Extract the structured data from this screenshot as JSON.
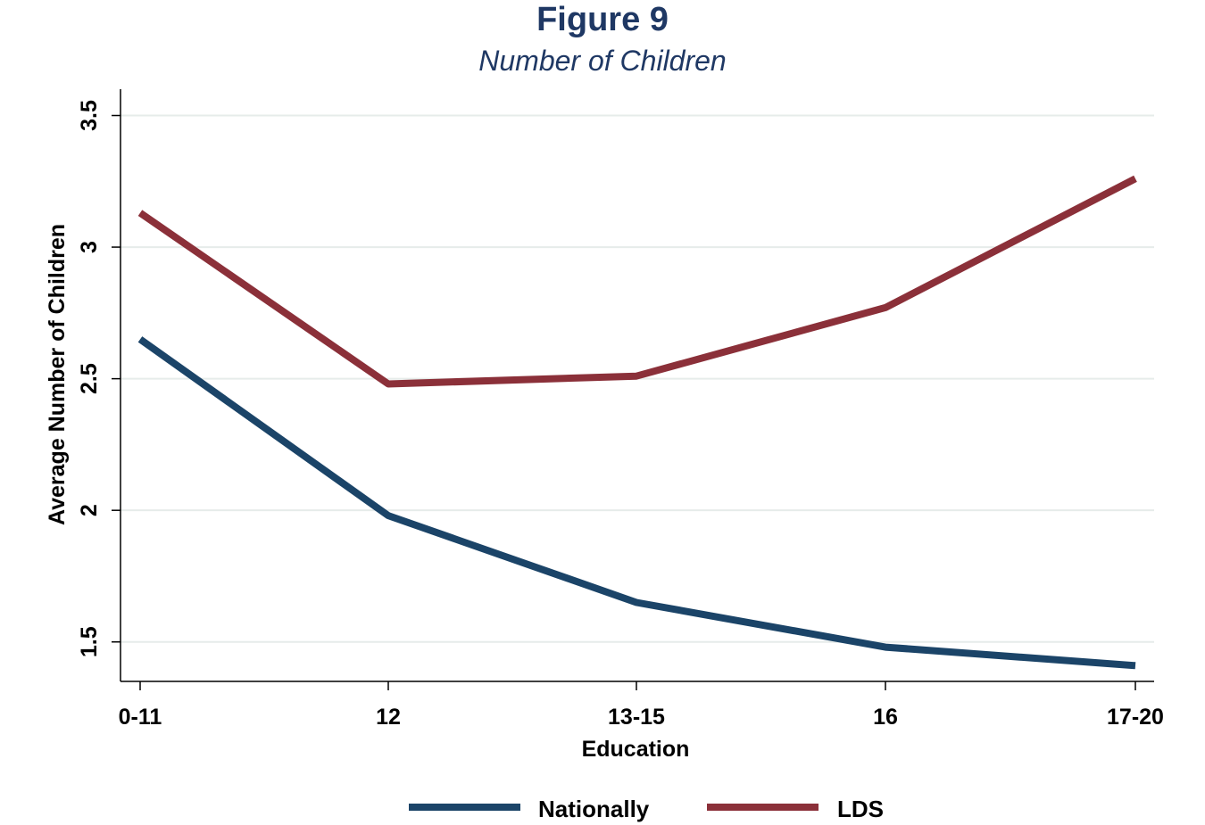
{
  "chart_data": {
    "type": "line",
    "title": "Figure 9",
    "subtitle": "Number of Children",
    "xlabel": "Education",
    "ylabel": "Average Number of Children",
    "categories": [
      "0-11",
      "12",
      "13-15",
      "16",
      "17-20"
    ],
    "yticks": [
      "1.5",
      "2",
      "2.5",
      "3",
      "3.5"
    ],
    "ylim": [
      1.35,
      3.6
    ],
    "grid": true,
    "legend_position": "bottom",
    "series": [
      {
        "name": "Nationally",
        "color": "#1b4468",
        "values": [
          2.65,
          1.98,
          1.65,
          1.48,
          1.41
        ]
      },
      {
        "name": "LDS",
        "color": "#8b3039",
        "values": [
          3.13,
          2.48,
          2.51,
          2.77,
          3.26
        ]
      }
    ]
  }
}
